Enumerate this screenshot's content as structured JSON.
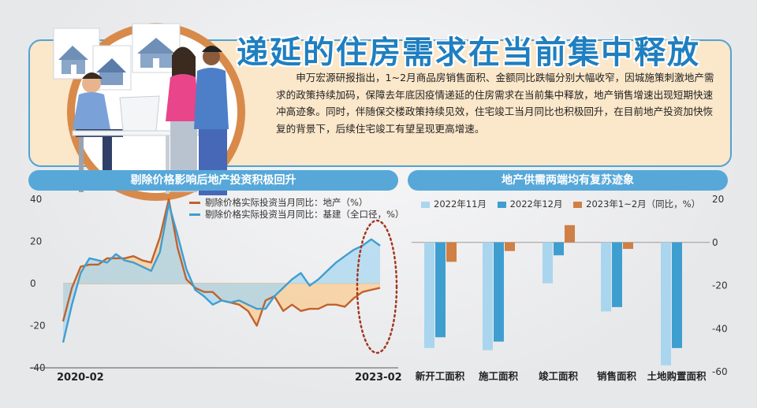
{
  "title": "递延的住房需求在当前集中释放",
  "intro": "申万宏源研报指出，1~2月商品房销售面积、金额同比跌幅分别大幅收窄，因城施策刺激地产需求的政策持续加码，保障去年底因疫情递延的住房需求在当前集中释放，地产销售增速出现短期快速冲高迹象。同时，伴随保交楼政策持续见效，住宅竣工当月同比也积极回升，在目前地产投资加快恢复的背景下，后续住宅竣工有望呈现更高增速。",
  "colors": {
    "accent": "#1f7fc0",
    "line_realestate": "#c0622d",
    "line_infra": "#3f9ed0",
    "fill_realestate": "#f8cf9c",
    "fill_infra": "#a9d7f0",
    "bar_nov": "#a9d6ee",
    "bar_dec": "#3f9ed0",
    "bar_2023": "#d07f45",
    "highlight": "#a3371f"
  },
  "chart_data": [
    {
      "type": "line",
      "title": "剔除价格影响后地产投资积极回升",
      "ylim": [
        -40,
        40
      ],
      "yticks": [
        "40",
        "20",
        "0",
        "-20",
        "-40"
      ],
      "x_start_label": "2020-02",
      "x_end_label": "2023-02",
      "series": [
        {
          "name": "剔除价格实际投资当月同比：地产（%）",
          "values": [
            -18,
            -2,
            8,
            9,
            9,
            12,
            12,
            12,
            13,
            11,
            10,
            22,
            40,
            17,
            2,
            -2,
            -4,
            -4,
            -8,
            -9,
            -10,
            -13,
            -20,
            -8,
            -6,
            -13,
            -10,
            -13,
            -12,
            -12,
            -10,
            -10,
            -11,
            -7,
            -4,
            -3,
            -2
          ]
        },
        {
          "name": "剔除价格实际投资当月同比：基建（全口径，%）",
          "values": [
            -28,
            -10,
            5,
            12,
            11,
            10,
            14,
            11,
            10,
            8,
            6,
            15,
            38,
            23,
            7,
            -3,
            -6,
            -10,
            -8,
            -9,
            -8,
            -10,
            -12,
            -12,
            -6,
            -2,
            2,
            5,
            -1,
            2,
            6,
            10,
            13,
            16,
            18,
            21,
            18
          ]
        }
      ]
    },
    {
      "type": "bar",
      "title": "地产供需两端均有复苏迹象",
      "ylim": [
        -60,
        20
      ],
      "yticks": [
        "20",
        "0",
        "-20",
        "-40",
        "-60"
      ],
      "categories": [
        "新开工面积",
        "施工面积",
        "竣工面积",
        "销售面积",
        "土地购置面积"
      ],
      "series": [
        {
          "name": "2022年11月",
          "values": [
            -49,
            -50,
            -19,
            -32,
            -57
          ]
        },
        {
          "name": "2022年12月",
          "values": [
            -44,
            -46,
            -6,
            -30,
            -49
          ]
        },
        {
          "name": "2023年1~2月（同比，%）",
          "values": [
            -9,
            -4,
            8,
            -3,
            null
          ]
        }
      ]
    }
  ]
}
